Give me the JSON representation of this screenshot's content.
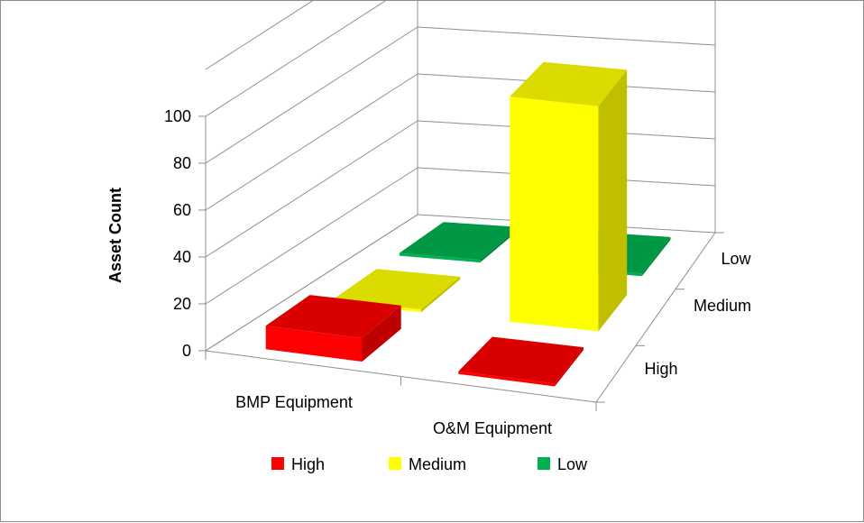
{
  "chart_data": {
    "type": "bar",
    "subtype": "3d-column",
    "categories": [
      "BMP Equipment",
      "O&M Equipment"
    ],
    "series": [
      {
        "name": "High",
        "values": [
          10,
          0
        ],
        "color": "#ff0000"
      },
      {
        "name": "Medium",
        "values": [
          0,
          96
        ],
        "color": "#ffff00"
      },
      {
        "name": "Low",
        "values": [
          0,
          0
        ],
        "color": "#00b050"
      }
    ],
    "depth_labels": [
      "High",
      "Medium",
      "Low"
    ],
    "ylabel": "Asset Count",
    "xlabel": "",
    "y_ticks": [
      "0",
      "20",
      "40",
      "60",
      "80",
      "100"
    ],
    "ylim": [
      0,
      100
    ],
    "grid": true,
    "legend": {
      "position": "bottom",
      "items": [
        "High",
        "Medium",
        "Low"
      ]
    }
  }
}
